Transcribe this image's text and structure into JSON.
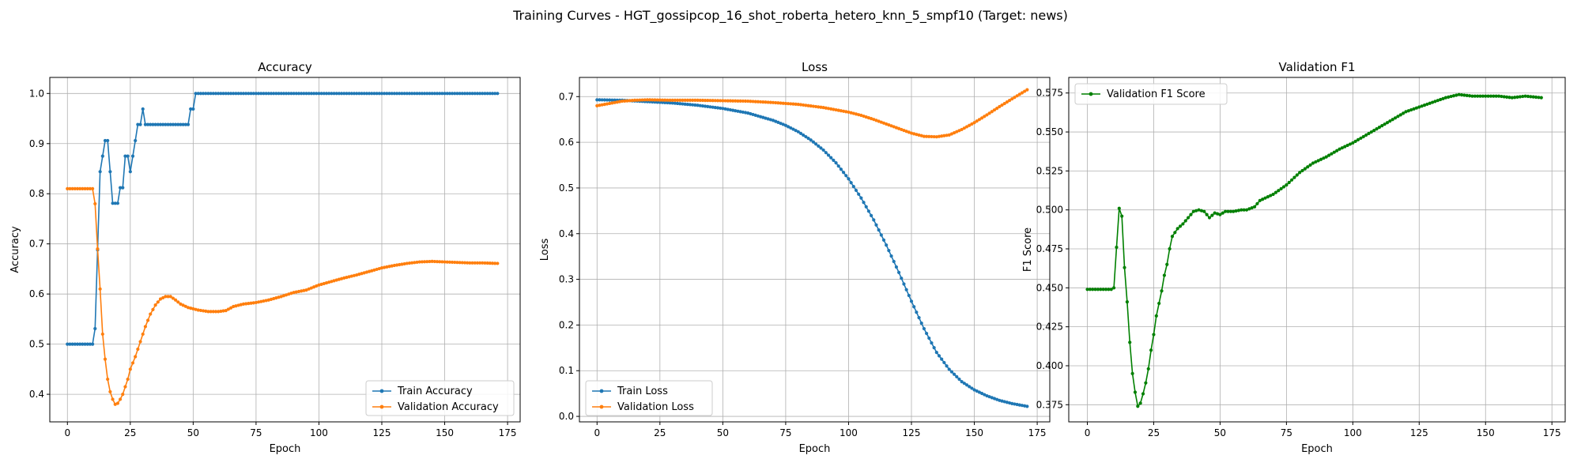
{
  "figure_title": "Training Curves - HGT_gossipcop_16_shot_roberta_hetero_knn_5_smpf10 (Target: news)",
  "colors": {
    "train": "#1f77b4",
    "validation": "#ff7f0e",
    "f1": "#008000"
  },
  "chart_data": [
    {
      "type": "line",
      "title": "Accuracy",
      "xlabel": "Epoch",
      "ylabel": "Accuracy",
      "xlim": [
        -7,
        180
      ],
      "ylim": [
        0.345,
        1.032
      ],
      "xticks": [
        "0",
        "25",
        "50",
        "75",
        "100",
        "125",
        "150",
        "175"
      ],
      "yticks": [
        "0.4",
        "0.5",
        "0.6",
        "0.7",
        "0.8",
        "0.9",
        "1.0"
      ],
      "grid": true,
      "legend": "lower right",
      "series": [
        {
          "name": "Train Accuracy",
          "color": "#1f77b4",
          "points": [
            [
              0,
              0.5
            ],
            [
              10,
              0.5
            ],
            [
              11,
              0.531
            ],
            [
              12,
              0.688
            ],
            [
              13,
              0.844
            ],
            [
              14,
              0.875
            ],
            [
              15,
              0.906
            ],
            [
              16,
              0.906
            ],
            [
              17,
              0.844
            ],
            [
              18,
              0.781
            ],
            [
              19,
              0.781
            ],
            [
              20,
              0.781
            ],
            [
              21,
              0.812
            ],
            [
              22,
              0.812
            ],
            [
              23,
              0.875
            ],
            [
              24,
              0.875
            ],
            [
              25,
              0.844
            ],
            [
              26,
              0.875
            ],
            [
              27,
              0.906
            ],
            [
              28,
              0.938
            ],
            [
              29,
              0.938
            ],
            [
              30,
              0.969
            ],
            [
              31,
              0.938
            ],
            [
              48,
              0.938
            ],
            [
              49,
              0.969
            ],
            [
              50,
              0.969
            ],
            [
              51,
              1.0
            ],
            [
              171,
              1.0
            ]
          ]
        },
        {
          "name": "Validation Accuracy",
          "color": "#ff7f0e",
          "points": [
            [
              0,
              0.81
            ],
            [
              10,
              0.81
            ],
            [
              11,
              0.78
            ],
            [
              12,
              0.69
            ],
            [
              13,
              0.61
            ],
            [
              14,
              0.52
            ],
            [
              15,
              0.47
            ],
            [
              16,
              0.43
            ],
            [
              17,
              0.405
            ],
            [
              18,
              0.39
            ],
            [
              19,
              0.38
            ],
            [
              20,
              0.382
            ],
            [
              21,
              0.39
            ],
            [
              22,
              0.4
            ],
            [
              23,
              0.415
            ],
            [
              24,
              0.43
            ],
            [
              25,
              0.45
            ],
            [
              27,
              0.475
            ],
            [
              29,
              0.505
            ],
            [
              31,
              0.535
            ],
            [
              33,
              0.56
            ],
            [
              35,
              0.578
            ],
            [
              37,
              0.59
            ],
            [
              39,
              0.595
            ],
            [
              41,
              0.595
            ],
            [
              43,
              0.588
            ],
            [
              45,
              0.58
            ],
            [
              48,
              0.573
            ],
            [
              52,
              0.568
            ],
            [
              56,
              0.565
            ],
            [
              60,
              0.565
            ],
            [
              63,
              0.567
            ],
            [
              66,
              0.575
            ],
            [
              70,
              0.58
            ],
            [
              75,
              0.583
            ],
            [
              80,
              0.588
            ],
            [
              85,
              0.595
            ],
            [
              90,
              0.603
            ],
            [
              95,
              0.608
            ],
            [
              100,
              0.618
            ],
            [
              105,
              0.625
            ],
            [
              110,
              0.632
            ],
            [
              115,
              0.638
            ],
            [
              120,
              0.645
            ],
            [
              125,
              0.652
            ],
            [
              130,
              0.657
            ],
            [
              135,
              0.661
            ],
            [
              140,
              0.664
            ],
            [
              145,
              0.665
            ],
            [
              150,
              0.664
            ],
            [
              155,
              0.663
            ],
            [
              160,
              0.662
            ],
            [
              165,
              0.662
            ],
            [
              171,
              0.661
            ]
          ]
        }
      ]
    },
    {
      "type": "line",
      "title": "Loss",
      "xlabel": "Epoch",
      "ylabel": "Loss",
      "xlim": [
        -7,
        180
      ],
      "ylim": [
        -0.012,
        0.742
      ],
      "xticks": [
        "0",
        "25",
        "50",
        "75",
        "100",
        "125",
        "150",
        "175"
      ],
      "yticks": [
        "0.0",
        "0.1",
        "0.2",
        "0.3",
        "0.4",
        "0.5",
        "0.6",
        "0.7"
      ],
      "grid": true,
      "legend": "lower left",
      "series": [
        {
          "name": "Train Loss",
          "color": "#1f77b4",
          "points": [
            [
              0,
              0.693
            ],
            [
              10,
              0.692
            ],
            [
              20,
              0.689
            ],
            [
              30,
              0.686
            ],
            [
              40,
              0.681
            ],
            [
              50,
              0.674
            ],
            [
              60,
              0.664
            ],
            [
              70,
              0.648
            ],
            [
              75,
              0.637
            ],
            [
              80,
              0.623
            ],
            [
              85,
              0.605
            ],
            [
              90,
              0.583
            ],
            [
              95,
              0.555
            ],
            [
              100,
              0.52
            ],
            [
              105,
              0.478
            ],
            [
              110,
              0.43
            ],
            [
              115,
              0.375
            ],
            [
              120,
              0.315
            ],
            [
              125,
              0.252
            ],
            [
              130,
              0.192
            ],
            [
              135,
              0.14
            ],
            [
              140,
              0.103
            ],
            [
              145,
              0.076
            ],
            [
              150,
              0.058
            ],
            [
              155,
              0.045
            ],
            [
              160,
              0.035
            ],
            [
              165,
              0.028
            ],
            [
              171,
              0.022
            ]
          ]
        },
        {
          "name": "Validation Loss",
          "color": "#ff7f0e",
          "points": [
            [
              0,
              0.68
            ],
            [
              5,
              0.685
            ],
            [
              10,
              0.69
            ],
            [
              15,
              0.692
            ],
            [
              20,
              0.693
            ],
            [
              30,
              0.692
            ],
            [
              40,
              0.692
            ],
            [
              50,
              0.691
            ],
            [
              60,
              0.69
            ],
            [
              70,
              0.687
            ],
            [
              80,
              0.683
            ],
            [
              90,
              0.676
            ],
            [
              100,
              0.666
            ],
            [
              105,
              0.659
            ],
            [
              110,
              0.65
            ],
            [
              115,
              0.64
            ],
            [
              120,
              0.63
            ],
            [
              125,
              0.62
            ],
            [
              130,
              0.613
            ],
            [
              135,
              0.612
            ],
            [
              140,
              0.616
            ],
            [
              145,
              0.628
            ],
            [
              150,
              0.643
            ],
            [
              155,
              0.66
            ],
            [
              160,
              0.678
            ],
            [
              165,
              0.695
            ],
            [
              171,
              0.715
            ]
          ]
        }
      ]
    },
    {
      "type": "line",
      "title": "Validation F1",
      "xlabel": "Epoch",
      "ylabel": "F1 Score",
      "xlim": [
        -7,
        180
      ],
      "ylim": [
        0.364,
        0.585
      ],
      "xticks": [
        "0",
        "25",
        "50",
        "75",
        "100",
        "125",
        "150",
        "175"
      ],
      "yticks": [
        "0.375",
        "0.400",
        "0.425",
        "0.450",
        "0.475",
        "0.500",
        "0.525",
        "0.550",
        "0.575"
      ],
      "grid": true,
      "legend": "upper left",
      "series": [
        {
          "name": "Validation F1 Score",
          "color": "#008000",
          "points": [
            [
              0,
              0.449
            ],
            [
              9,
              0.449
            ],
            [
              10,
              0.45
            ],
            [
              11,
              0.476
            ],
            [
              12,
              0.501
            ],
            [
              13,
              0.496
            ],
            [
              14,
              0.463
            ],
            [
              15,
              0.441
            ],
            [
              16,
              0.415
            ],
            [
              17,
              0.395
            ],
            [
              18,
              0.383
            ],
            [
              19,
              0.374
            ],
            [
              20,
              0.376
            ],
            [
              21,
              0.382
            ],
            [
              22,
              0.389
            ],
            [
              23,
              0.398
            ],
            [
              24,
              0.41
            ],
            [
              25,
              0.42
            ],
            [
              26,
              0.432
            ],
            [
              27,
              0.44
            ],
            [
              28,
              0.448
            ],
            [
              29,
              0.458
            ],
            [
              30,
              0.465
            ],
            [
              31,
              0.475
            ],
            [
              32,
              0.483
            ],
            [
              34,
              0.488
            ],
            [
              36,
              0.491
            ],
            [
              38,
              0.495
            ],
            [
              40,
              0.499
            ],
            [
              42,
              0.5
            ],
            [
              44,
              0.499
            ],
            [
              46,
              0.495
            ],
            [
              48,
              0.498
            ],
            [
              50,
              0.497
            ],
            [
              52,
              0.499
            ],
            [
              55,
              0.499
            ],
            [
              58,
              0.5
            ],
            [
              60,
              0.5
            ],
            [
              63,
              0.502
            ],
            [
              65,
              0.506
            ],
            [
              70,
              0.51
            ],
            [
              75,
              0.516
            ],
            [
              80,
              0.524
            ],
            [
              85,
              0.53
            ],
            [
              90,
              0.534
            ],
            [
              95,
              0.539
            ],
            [
              100,
              0.543
            ],
            [
              105,
              0.548
            ],
            [
              110,
              0.553
            ],
            [
              115,
              0.558
            ],
            [
              120,
              0.563
            ],
            [
              125,
              0.566
            ],
            [
              130,
              0.569
            ],
            [
              135,
              0.572
            ],
            [
              140,
              0.574
            ],
            [
              145,
              0.573
            ],
            [
              150,
              0.573
            ],
            [
              155,
              0.573
            ],
            [
              160,
              0.572
            ],
            [
              165,
              0.573
            ],
            [
              171,
              0.572
            ]
          ]
        }
      ]
    }
  ]
}
